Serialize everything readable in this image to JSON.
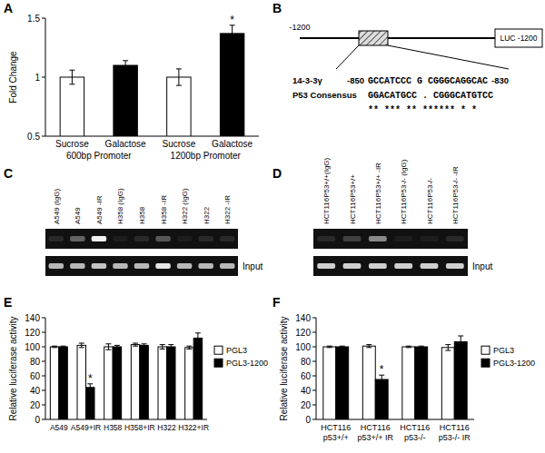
{
  "panel_labels": [
    "A",
    "B",
    "C",
    "D",
    "E",
    "F"
  ],
  "chart_data": [
    {
      "type": "bar",
      "y_label": "Fold Change",
      "categories": [
        "Sucrose",
        "Galactose",
        "Sucrose",
        "Galactose"
      ],
      "group_labels": [
        "600bp Promoter",
        "1200bp Promoter"
      ],
      "values": [
        1.0,
        1.1,
        1.0,
        1.37
      ],
      "errors": [
        0.06,
        0.04,
        0.07,
        0.07
      ],
      "colors": [
        "#ffffff",
        "#000000",
        "#ffffff",
        "#000000"
      ],
      "ylim": [
        0.5,
        1.5
      ],
      "yticks": [
        0.5,
        1,
        1.5
      ],
      "annotations": [
        {
          "text": "*",
          "index": 3
        }
      ]
    },
    {
      "type": "bar",
      "y_label": "Relative luciferase activity",
      "categories": [
        "A549",
        "A549+IR",
        "H358",
        "H358+IR",
        "H322",
        "H322+IR"
      ],
      "series": [
        {
          "name": "PGL3",
          "color": "#ffffff",
          "values": [
            100,
            102,
            100,
            103,
            100,
            99
          ],
          "errors": [
            1,
            3,
            4,
            2,
            3,
            2
          ]
        },
        {
          "name": "PGL3-1200",
          "color": "#000000",
          "values": [
            100,
            44,
            100,
            102,
            100,
            112
          ],
          "errors": [
            1,
            5,
            2,
            2,
            3,
            7
          ]
        }
      ],
      "ylim": [
        0,
        140
      ],
      "yticks": [
        0,
        20,
        40,
        60,
        80,
        100,
        120,
        140
      ],
      "legend": "right",
      "annotations": [
        {
          "text": "*",
          "series": 1,
          "index": 1
        }
      ]
    },
    {
      "type": "bar",
      "y_label": "Relative luciferase activity",
      "categories": [
        "HCT116 p53+/+",
        "HCT116 p53+/+ IR",
        "HCT116 p53-/-",
        "HCT116 p53-/- IR"
      ],
      "series": [
        {
          "name": "PGL3",
          "color": "#ffffff",
          "values": [
            100,
            101,
            100,
            99
          ],
          "errors": [
            1,
            2,
            1,
            4
          ]
        },
        {
          "name": "PGL3-1200",
          "color": "#000000",
          "values": [
            100,
            55,
            100,
            107
          ],
          "errors": [
            1,
            6,
            1,
            8
          ]
        }
      ],
      "ylim": [
        0,
        140
      ],
      "yticks": [
        0,
        20,
        40,
        60,
        80,
        100,
        120,
        140
      ],
      "legend": "right",
      "annotations": [
        {
          "text": "*",
          "series": 1,
          "index": 1
        }
      ]
    }
  ],
  "diagram": {
    "start_label": "-1200",
    "reporter_label": "LUC -1200",
    "rows": [
      {
        "label": "14-3-3γ",
        "prefix": "-850",
        "sequence": "GCCATCCC G CGGGCAGGCAC",
        "suffix": "-830"
      },
      {
        "label": "P53 Consensus",
        "sequence": "GGACATGCC . CGGGCATGTCC"
      }
    ],
    "match": "** *** ** ****** * *"
  },
  "gels": [
    {
      "lanes": [
        "A549 (IgG)",
        "A549",
        "A549 -IR",
        "H358 (IgG)",
        "H358",
        "H358 -IR",
        "H322 (IgG)",
        "H322",
        "H322 -IR"
      ],
      "signal": [
        0.1,
        0.35,
        0.95,
        0.05,
        0.1,
        0.3,
        0.05,
        0.1,
        0.1
      ],
      "input_label": "Input",
      "input_signal": [
        0.7,
        0.7,
        0.75,
        0.7,
        0.7,
        0.9,
        0.7,
        0.7,
        0.7
      ]
    },
    {
      "lanes": [
        "HCT116P53+/+(IgG)",
        "HCT116P53+/+",
        "HCT116P53+/+ -IR",
        "HCT116P53-/- (IgG)",
        "HCT116P53-/-",
        "HCT116P53-/- -IR"
      ],
      "signal": [
        0.1,
        0.2,
        0.5,
        0.05,
        0.05,
        0.1
      ],
      "input_label": "Input",
      "input_signal": [
        0.8,
        0.8,
        0.8,
        0.8,
        0.8,
        0.8
      ]
    }
  ]
}
